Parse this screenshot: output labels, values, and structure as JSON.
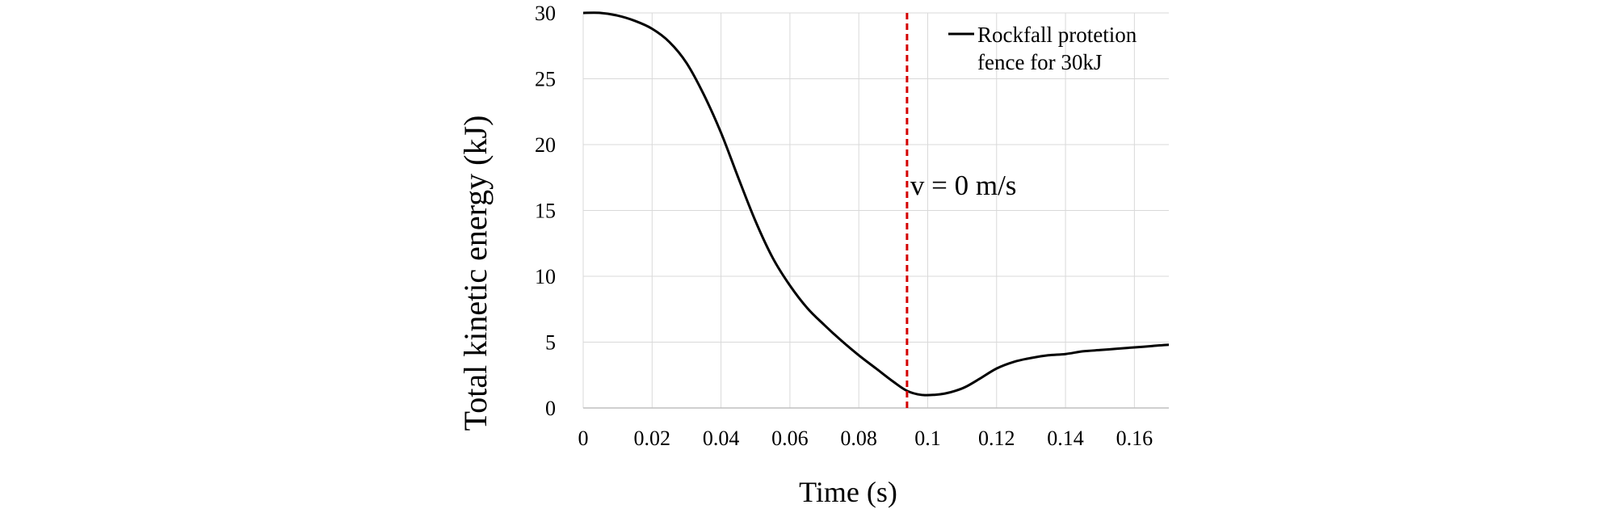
{
  "chart_data": {
    "type": "line",
    "title": "",
    "xlabel": "Time (s)",
    "ylabel": "Total kinetic energy (kJ)",
    "xlim": [
      0,
      0.17
    ],
    "ylim": [
      0,
      30
    ],
    "x_ticks": [
      "0",
      "0.02",
      "0.04",
      "0.06",
      "0.08",
      "0.1",
      "0.12",
      "0.14",
      "0.16"
    ],
    "y_ticks": [
      "0",
      "5",
      "10",
      "15",
      "20",
      "25",
      "30"
    ],
    "grid": true,
    "legend_position": "top-right",
    "colors": {
      "series": "#000000",
      "marker_line": "#d40000",
      "grid": "#d9d9d9"
    },
    "series": [
      {
        "name": "Rockfall protetion fence for 30kJ",
        "legend_lines": [
          "Rockfall protetion",
          "fence for 30kJ"
        ],
        "x": [
          0,
          0.005,
          0.01,
          0.015,
          0.02,
          0.025,
          0.03,
          0.035,
          0.04,
          0.045,
          0.05,
          0.055,
          0.06,
          0.065,
          0.07,
          0.075,
          0.08,
          0.085,
          0.09,
          0.094,
          0.098,
          0.102,
          0.105,
          0.108,
          0.111,
          0.115,
          0.12,
          0.125,
          0.13,
          0.135,
          0.14,
          0.145,
          0.15,
          0.155,
          0.16,
          0.165,
          0.17
        ],
        "y": [
          30,
          30,
          29.8,
          29.4,
          28.8,
          27.8,
          26.2,
          23.8,
          20.9,
          17.5,
          14.2,
          11.4,
          9.3,
          7.6,
          6.3,
          5.1,
          4.0,
          3.0,
          2.0,
          1.3,
          1.0,
          1.0,
          1.1,
          1.3,
          1.6,
          2.2,
          3.0,
          3.5,
          3.8,
          4.0,
          4.1,
          4.3,
          4.4,
          4.5,
          4.6,
          4.7,
          4.8
        ]
      }
    ],
    "annotations": [
      {
        "type": "vertical-line",
        "x": 0.094,
        "style": "dashed",
        "label": "v = 0 m/s"
      }
    ]
  }
}
